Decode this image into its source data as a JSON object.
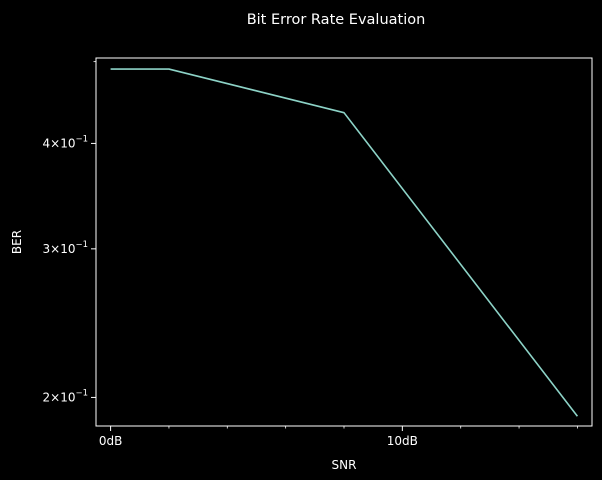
{
  "chart_data": {
    "type": "line",
    "title": "Bit Error Rate Evaluation",
    "xlabel": "SNR",
    "ylabel": "BER",
    "x_scale": "linear",
    "y_scale": "log",
    "grid": false,
    "background_color": "#000000",
    "foreground_color": "#ffffff",
    "xlim": [
      -0.5,
      16.5
    ],
    "ylim": [
      0.185,
      0.505
    ],
    "x_ticks": [
      {
        "value": 0,
        "label": "0dB"
      },
      {
        "value": 10,
        "label": "10dB"
      }
    ],
    "y_ticks": [
      {
        "value": 0.4,
        "mantissa": "4",
        "base": "10",
        "exponent": "−1"
      },
      {
        "value": 0.3,
        "mantissa": "3",
        "base": "10",
        "exponent": "−1"
      },
      {
        "value": 0.2,
        "mantissa": "2",
        "base": "10",
        "exponent": "−1"
      }
    ],
    "series": [
      {
        "color": "#8dd3c7",
        "x": [
          0,
          2,
          8,
          16
        ],
        "y": [
          0.49,
          0.49,
          0.435,
          0.19
        ]
      }
    ]
  }
}
